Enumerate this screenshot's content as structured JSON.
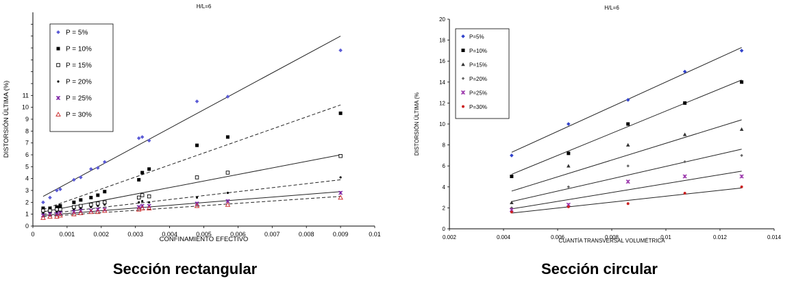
{
  "charts": [
    {
      "title": "H/L=6",
      "xlabel": "CONFINAMIENTO EFECTIVO",
      "ylabel": "DISTORSIÓN ÚLTIMA (%)",
      "caption": "Sección rectangular",
      "x_ticks": [
        "0",
        "0.001",
        "0.002",
        "0.003",
        "0.004",
        "0.005",
        "0.006",
        "0.007",
        "0.008",
        "0.009",
        "0.01"
      ],
      "y_ticks": [
        "0",
        "1",
        "2",
        "3",
        "4",
        "5",
        "6",
        "7",
        "8",
        "9",
        "10",
        "11"
      ],
      "legend": [
        "P = 5%",
        "P = 10%",
        "P = 15%",
        "P = 20%",
        "P = 25%",
        "P = 30%"
      ]
    },
    {
      "title": "H/L=6",
      "xlabel": "CUANTÍA TRANSVERSAL VOLUMÉTRICA",
      "ylabel": "DISTORSIÓN ÚLTIMA (%",
      "caption": "Sección circular",
      "x_ticks": [
        "0.002",
        "0.004",
        "0.006",
        "0.008",
        "0.01",
        "0.012",
        "0.014"
      ],
      "y_ticks": [
        "0",
        "2",
        "4",
        "6",
        "8",
        "10",
        "12",
        "14",
        "16",
        "18",
        "20"
      ],
      "legend": [
        "P=5%",
        "P=10%",
        "P=15%",
        "P=20%",
        "P=25%",
        "P=30%"
      ]
    }
  ],
  "chart_data": [
    {
      "type": "scatter",
      "title": "H/L=6",
      "xlabel": "CONFINAMIENTO EFECTIVO",
      "ylabel": "DISTORSIÓN ÚLTIMA (%)",
      "xlim": [
        0,
        0.01
      ],
      "ylim": [
        0,
        18
      ],
      "grid": false,
      "legend_position": "top-left",
      "series": [
        {
          "name": "P = 5%",
          "marker": "diamond",
          "color": "#5b5bd6",
          "trend": "solid",
          "trend_points": [
            [
              0.0003,
              2.5
            ],
            [
              0.009,
              16.0
            ]
          ],
          "points": [
            [
              0.0003,
              2.0
            ],
            [
              0.0005,
              2.4
            ],
            [
              0.0007,
              3.0
            ],
            [
              0.0008,
              3.1
            ],
            [
              0.0012,
              3.9
            ],
            [
              0.0014,
              4.1
            ],
            [
              0.0017,
              4.8
            ],
            [
              0.0019,
              4.9
            ],
            [
              0.0021,
              5.4
            ],
            [
              0.0031,
              7.4
            ],
            [
              0.0032,
              7.5
            ],
            [
              0.0034,
              7.2
            ],
            [
              0.0048,
              10.5
            ],
            [
              0.0057,
              10.9
            ],
            [
              0.009,
              14.8
            ]
          ]
        },
        {
          "name": "P = 10%",
          "marker": "square-filled",
          "color": "#000000",
          "trend": "dashed",
          "trend_points": [
            [
              0.0003,
              1.4
            ],
            [
              0.009,
              10.2
            ]
          ],
          "points": [
            [
              0.0003,
              1.5
            ],
            [
              0.0005,
              1.5
            ],
            [
              0.0007,
              1.6
            ],
            [
              0.0008,
              1.7
            ],
            [
              0.0012,
              2.0
            ],
            [
              0.0014,
              2.2
            ],
            [
              0.0017,
              2.4
            ],
            [
              0.0019,
              2.6
            ],
            [
              0.0021,
              2.9
            ],
            [
              0.0031,
              3.9
            ],
            [
              0.0032,
              4.5
            ],
            [
              0.0034,
              4.8
            ],
            [
              0.0048,
              6.8
            ],
            [
              0.0057,
              7.5
            ],
            [
              0.009,
              9.5
            ]
          ]
        },
        {
          "name": "P = 15%",
          "marker": "square-open",
          "color": "#000000",
          "trend": "solid",
          "trend_points": [
            [
              0.0003,
              1.2
            ],
            [
              0.009,
              6.0
            ]
          ],
          "points": [
            [
              0.0003,
              1.3
            ],
            [
              0.0005,
              1.3
            ],
            [
              0.0007,
              1.4
            ],
            [
              0.0008,
              1.4
            ],
            [
              0.0012,
              1.6
            ],
            [
              0.0014,
              1.7
            ],
            [
              0.0017,
              1.8
            ],
            [
              0.0019,
              1.9
            ],
            [
              0.0021,
              2.0
            ],
            [
              0.0031,
              2.4
            ],
            [
              0.0032,
              2.6
            ],
            [
              0.0034,
              2.5
            ],
            [
              0.0048,
              4.1
            ],
            [
              0.0057,
              4.5
            ],
            [
              0.009,
              5.9
            ]
          ]
        },
        {
          "name": "P = 20%",
          "marker": "plus",
          "color": "#000000",
          "trend": "dashed",
          "trend_points": [
            [
              0.0003,
              1.0
            ],
            [
              0.009,
              3.9
            ]
          ],
          "points": [
            [
              0.0003,
              1.1
            ],
            [
              0.0005,
              1.1
            ],
            [
              0.0007,
              1.2
            ],
            [
              0.0008,
              1.2
            ],
            [
              0.0012,
              1.4
            ],
            [
              0.0014,
              1.5
            ],
            [
              0.0017,
              1.6
            ],
            [
              0.0019,
              1.7
            ],
            [
              0.0021,
              1.8
            ],
            [
              0.0031,
              2.0
            ],
            [
              0.0032,
              2.1
            ],
            [
              0.0034,
              2.0
            ],
            [
              0.0048,
              2.4
            ],
            [
              0.0057,
              2.8
            ],
            [
              0.009,
              4.1
            ]
          ]
        },
        {
          "name": "P = 25%",
          "marker": "x",
          "color": "#7a1fa2",
          "trend": "solid",
          "trend_points": [
            [
              0.0003,
              0.9
            ],
            [
              0.009,
              2.9
            ]
          ],
          "points": [
            [
              0.0003,
              0.9
            ],
            [
              0.0005,
              1.0
            ],
            [
              0.0007,
              1.0
            ],
            [
              0.0008,
              1.1
            ],
            [
              0.0012,
              1.2
            ],
            [
              0.0014,
              1.3
            ],
            [
              0.0017,
              1.3
            ],
            [
              0.0019,
              1.4
            ],
            [
              0.0021,
              1.4
            ],
            [
              0.0031,
              1.6
            ],
            [
              0.0032,
              1.7
            ],
            [
              0.0034,
              1.7
            ],
            [
              0.0048,
              1.9
            ],
            [
              0.0057,
              2.1
            ],
            [
              0.009,
              2.8
            ]
          ]
        },
        {
          "name": "P = 30%",
          "marker": "triangle-open",
          "color": "#cc3333",
          "trend": "dashed",
          "trend_points": [
            [
              0.0003,
              0.8
            ],
            [
              0.009,
              2.5
            ]
          ],
          "points": [
            [
              0.0003,
              0.7
            ],
            [
              0.0005,
              0.8
            ],
            [
              0.0007,
              0.8
            ],
            [
              0.0008,
              0.9
            ],
            [
              0.0012,
              1.0
            ],
            [
              0.0014,
              1.1
            ],
            [
              0.0017,
              1.2
            ],
            [
              0.0019,
              1.2
            ],
            [
              0.0021,
              1.3
            ],
            [
              0.0031,
              1.4
            ],
            [
              0.0032,
              1.5
            ],
            [
              0.0034,
              1.5
            ],
            [
              0.0048,
              1.7
            ],
            [
              0.0057,
              1.8
            ],
            [
              0.009,
              2.4
            ]
          ]
        }
      ]
    },
    {
      "type": "scatter",
      "title": "H/L=6",
      "xlabel": "CUANTÍA TRANSVERSAL VOLUMÉTRICA",
      "ylabel": "DISTORSIÓN ÚLTIMA (%",
      "xlim": [
        0.002,
        0.014
      ],
      "ylim": [
        0,
        20
      ],
      "grid": false,
      "legend_position": "top-left",
      "series": [
        {
          "name": "P=5%",
          "marker": "diamond",
          "color": "#3344cc",
          "trend": "solid",
          "trend_points": [
            [
              0.0043,
              7.3
            ],
            [
              0.0128,
              17.3
            ]
          ],
          "points": [
            [
              0.0043,
              7.0
            ],
            [
              0.0064,
              10.0
            ],
            [
              0.0086,
              12.3
            ],
            [
              0.0107,
              15.0
            ],
            [
              0.0128,
              17.0
            ]
          ]
        },
        {
          "name": "P=10%",
          "marker": "square-filled",
          "color": "#000000",
          "trend": "solid",
          "trend_points": [
            [
              0.0043,
              5.2
            ],
            [
              0.0128,
              14.2
            ]
          ],
          "points": [
            [
              0.0043,
              5.0
            ],
            [
              0.0064,
              7.2
            ],
            [
              0.0086,
              10.0
            ],
            [
              0.0107,
              12.0
            ],
            [
              0.0128,
              14.0
            ]
          ]
        },
        {
          "name": "P=15%",
          "marker": "triangle-filled",
          "color": "#333333",
          "trend": "solid",
          "trend_points": [
            [
              0.0043,
              3.6
            ],
            [
              0.0128,
              10.4
            ]
          ],
          "points": [
            [
              0.0043,
              2.5
            ],
            [
              0.0064,
              6.0
            ],
            [
              0.0086,
              8.0
            ],
            [
              0.0107,
              9.0
            ],
            [
              0.0128,
              9.5
            ]
          ]
        },
        {
          "name": "P=20%",
          "marker": "diamond-small",
          "color": "#666666",
          "trend": "solid",
          "trend_points": [
            [
              0.0043,
              2.6
            ],
            [
              0.0128,
              7.6
            ]
          ],
          "points": [
            [
              0.0043,
              2.0
            ],
            [
              0.0064,
              4.0
            ],
            [
              0.0086,
              6.0
            ],
            [
              0.0107,
              6.4
            ],
            [
              0.0128,
              7.0
            ]
          ]
        },
        {
          "name": "P=25%",
          "marker": "x",
          "color": "#9933aa",
          "trend": "solid",
          "trend_points": [
            [
              0.0043,
              1.9
            ],
            [
              0.0128,
              5.5
            ]
          ],
          "points": [
            [
              0.0043,
              1.8
            ],
            [
              0.0064,
              2.3
            ],
            [
              0.0086,
              4.5
            ],
            [
              0.0107,
              5.0
            ],
            [
              0.0128,
              5.0
            ]
          ]
        },
        {
          "name": "P=30%",
          "marker": "dot",
          "color": "#cc2222",
          "trend": "solid",
          "trend_points": [
            [
              0.0043,
              1.5
            ],
            [
              0.0128,
              3.9
            ]
          ],
          "points": [
            [
              0.0043,
              1.6
            ],
            [
              0.0064,
              2.1
            ],
            [
              0.0086,
              2.4
            ],
            [
              0.0107,
              3.4
            ],
            [
              0.0128,
              4.0
            ]
          ]
        }
      ]
    }
  ]
}
